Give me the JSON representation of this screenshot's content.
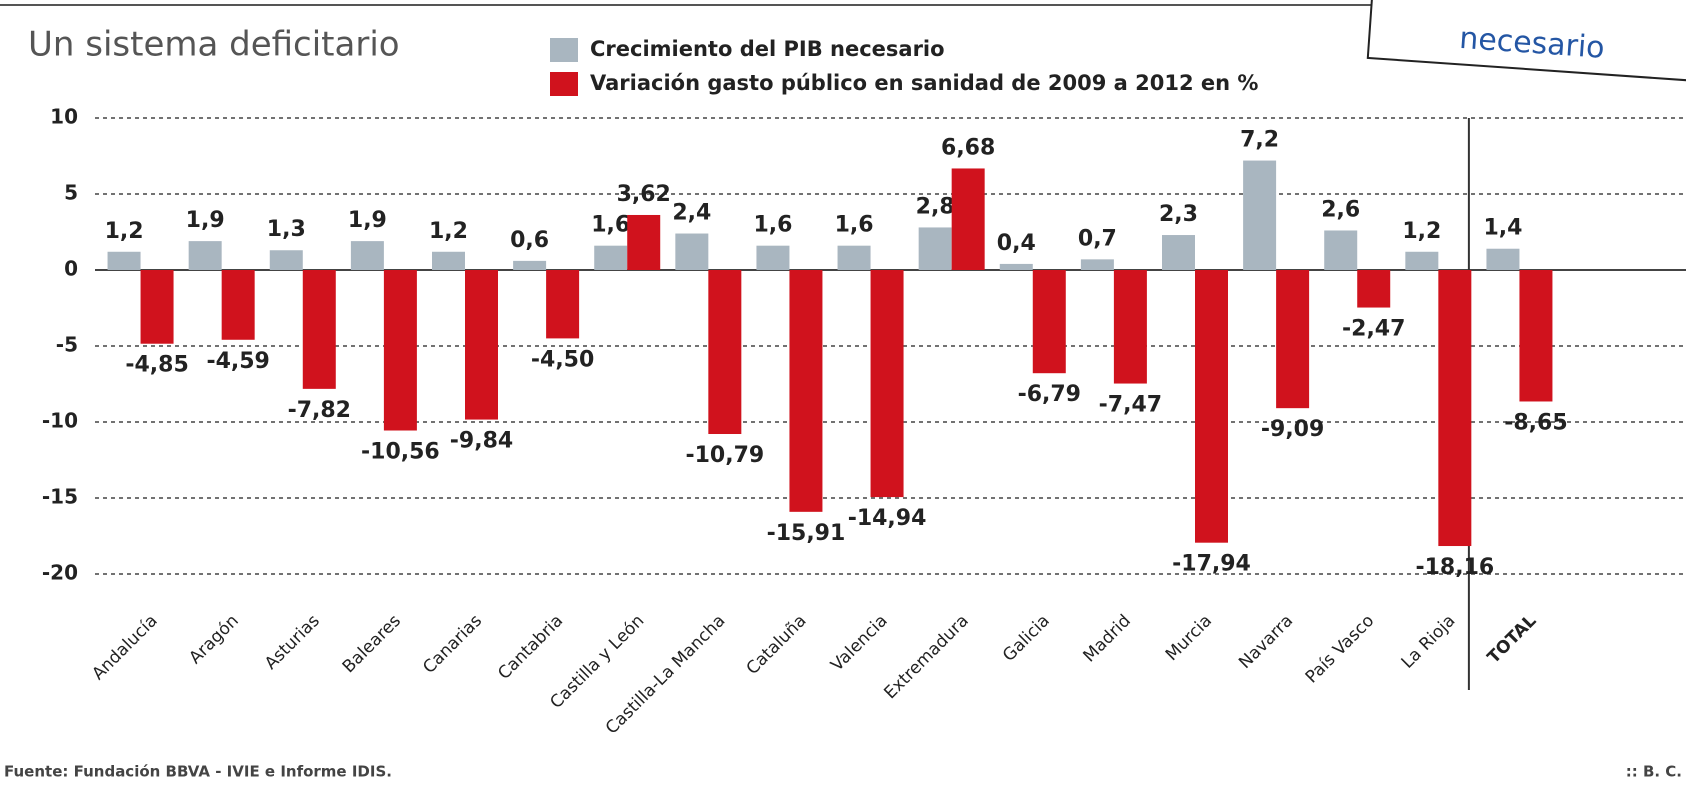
{
  "chart_data": {
    "type": "bar",
    "title": "Un sistema deficitario",
    "source": "Fuente: Fundación BBVA - IVIE e Informe IDIS.",
    "credit": ":: B. C.",
    "annotations": [
      "necesario"
    ],
    "categories": [
      "Andalucía",
      "Aragón",
      "Asturias",
      "Baleares",
      "Canarias",
      "Cantabria",
      "Castilla y León",
      "Castilla-La Mancha",
      "Cataluña",
      "Valencia",
      "Extremadura",
      "Galicia",
      "Madrid",
      "Murcia",
      "Navarra",
      "País Vasco",
      "La Rioja",
      "TOTAL"
    ],
    "series": [
      {
        "name": "Crecimiento del PIB necesario",
        "color": "#a9b6c0",
        "values": [
          1.2,
          1.9,
          1.3,
          1.9,
          1.2,
          0.6,
          1.6,
          2.4,
          1.6,
          1.6,
          2.8,
          0.4,
          0.7,
          2.3,
          7.2,
          2.6,
          1.2,
          1.4
        ],
        "value_labels": [
          "1,2",
          "1,9",
          "1,3",
          "1,9",
          "1,2",
          "0,6",
          "1,6",
          "2,4",
          "1,6",
          "1,6",
          "2,8",
          "0,4",
          "0,7",
          "2,3",
          "7,2",
          "2,6",
          "1,2",
          "1,4"
        ]
      },
      {
        "name": "Variación gasto público en sanidad de 2009 a 2012 en %",
        "color": "#d0121d",
        "values": [
          -4.85,
          -4.59,
          -7.82,
          -10.56,
          -9.84,
          -4.5,
          3.62,
          -10.79,
          -15.91,
          -14.94,
          6.68,
          -6.79,
          -7.47,
          -17.94,
          -9.09,
          -2.47,
          -18.16,
          -8.65
        ],
        "value_labels": [
          "-4,85",
          "-4,59",
          "-7,82",
          "-10,56",
          "-9,84",
          "-4,50",
          "3,62",
          "-10,79",
          "-15,91",
          "-14,94",
          "6,68",
          "-6,79",
          "-7,47",
          "-17,94",
          "-9,09",
          "-2,47",
          "-18,16",
          "-8,65"
        ]
      }
    ],
    "ylim": [
      -21.5,
      11
    ],
    "yticks": [
      10,
      5,
      0,
      -5,
      -10,
      -15,
      -20
    ],
    "grid": true,
    "legend": "top"
  }
}
